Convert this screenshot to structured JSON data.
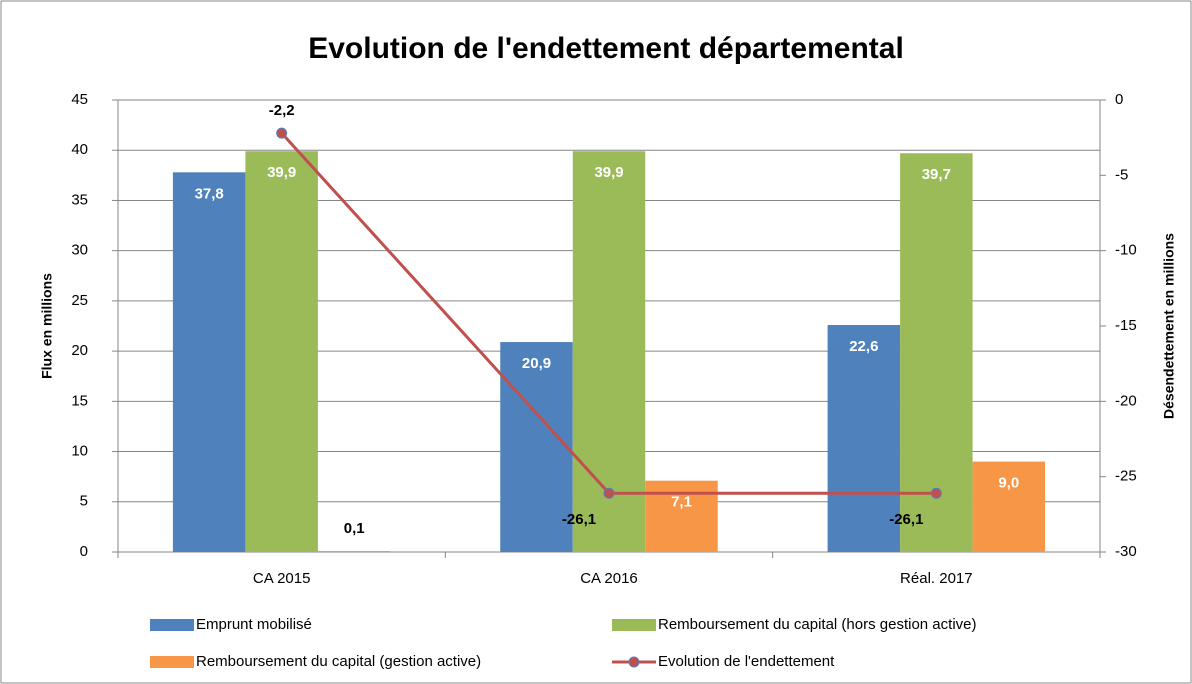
{
  "chart_data": {
    "type": "bar",
    "title": "Evolution de l'endettement départemental",
    "y_label": "Flux en millions",
    "y2_label": "Désendettement en millions",
    "categories": [
      "CA 2015",
      "CA 2016",
      "Réal. 2017"
    ],
    "series": [
      {
        "name": "Emprunt mobilisé",
        "color": "#4f81bd",
        "values": [
          37.8,
          20.9,
          22.6
        ],
        "value_labels": [
          "37,8",
          "20,9",
          "22,6"
        ]
      },
      {
        "name": "Remboursement du capital (hors gestion active)",
        "color": "#9bbb59",
        "values": [
          39.9,
          39.9,
          39.7
        ],
        "value_labels": [
          "39,9",
          "39,9",
          "39,7"
        ]
      },
      {
        "name": "Remboursement du capital (gestion active)",
        "color": "#f79646",
        "values": [
          0.1,
          7.1,
          9.0
        ],
        "value_labels": [
          "0,1",
          "7,1",
          "9,0"
        ]
      },
      {
        "name": "Evolution de l'endettement",
        "color": "#c0504d",
        "type": "line",
        "axis": "y2",
        "values": [
          -2.2,
          -26.1,
          -26.1
        ],
        "value_labels": [
          "-2,2",
          "-26,1",
          "-26,1"
        ]
      }
    ],
    "ylim": [
      0,
      45
    ],
    "yticks": [
      0,
      5,
      10,
      15,
      20,
      25,
      30,
      35,
      40,
      45
    ],
    "y2lim": [
      -30,
      0
    ],
    "y2ticks": [
      -30,
      -25,
      -20,
      -15,
      -10,
      -5,
      0
    ],
    "grid": true,
    "legend": "bottom"
  }
}
